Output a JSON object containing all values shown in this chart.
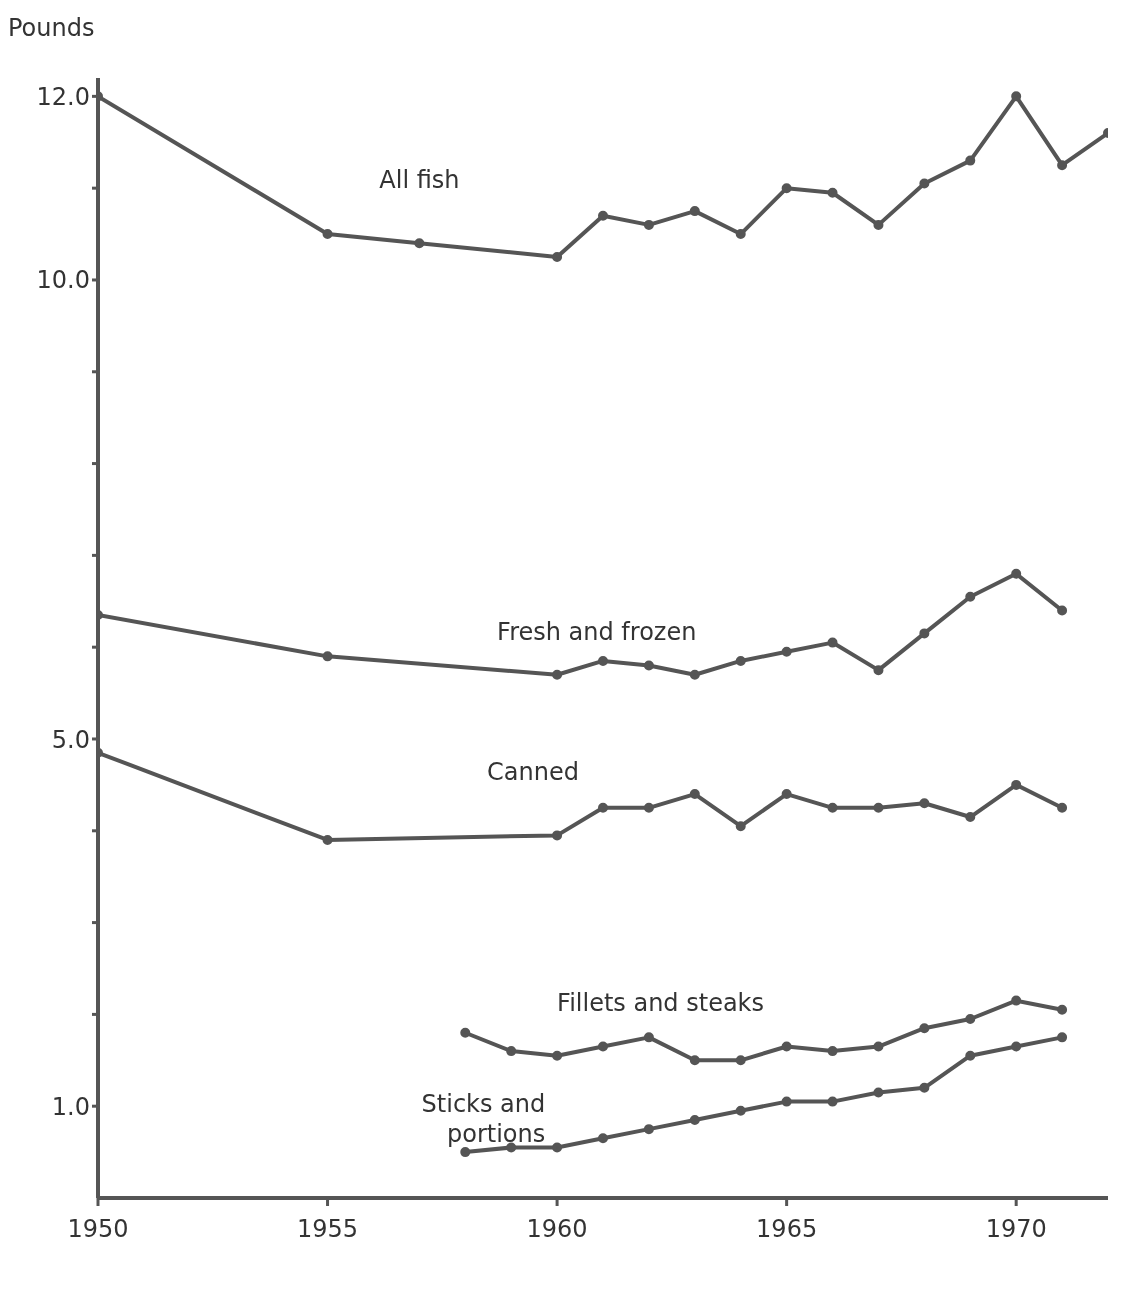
{
  "chart_data": {
    "type": "line",
    "ylabel": "Pounds",
    "xlim": [
      1950,
      1972
    ],
    "xticks": [
      1950,
      1955,
      1960,
      1965,
      1970
    ],
    "ylim": [
      0,
      12.2
    ],
    "yticks": [
      {
        "value": 1,
        "label": "1.0"
      },
      {
        "value": 2,
        "label": null
      },
      {
        "value": 3,
        "label": null
      },
      {
        "value": 4,
        "label": null
      },
      {
        "value": 5,
        "label": "5.0"
      },
      {
        "value": 6,
        "label": null
      },
      {
        "value": 7,
        "label": null
      },
      {
        "value": 8,
        "label": null
      },
      {
        "value": 9,
        "label": null
      },
      {
        "value": 10,
        "label": "10.0"
      },
      {
        "value": 11,
        "label": null
      },
      {
        "value": 12,
        "label": "12.0"
      }
    ],
    "grid": false,
    "legend": false,
    "marker": "circle",
    "line_style": "solid",
    "series": [
      {
        "name": "All fish",
        "color": "#555555",
        "x": [
          1950,
          1955,
          1957,
          1960,
          1961,
          1962,
          1963,
          1964,
          1965,
          1966,
          1967,
          1968,
          1969,
          1970,
          1971,
          1972
        ],
        "values": [
          12.0,
          10.5,
          10.4,
          10.25,
          10.7,
          10.6,
          10.75,
          10.5,
          11.0,
          10.95,
          10.6,
          11.05,
          11.3,
          12.0,
          11.25,
          11.6
        ]
      },
      {
        "name": "Fresh and frozen",
        "color": "#555555",
        "x": [
          1950,
          1955,
          1960,
          1961,
          1962,
          1963,
          1964,
          1965,
          1966,
          1967,
          1968,
          1969,
          1970,
          1971
        ],
        "values": [
          6.35,
          5.9,
          5.7,
          5.85,
          5.8,
          5.7,
          5.85,
          5.95,
          6.05,
          5.75,
          6.15,
          6.55,
          6.8,
          6.4
        ]
      },
      {
        "name": "Canned",
        "color": "#555555",
        "x": [
          1950,
          1955,
          1960,
          1961,
          1962,
          1963,
          1964,
          1965,
          1966,
          1967,
          1968,
          1969,
          1970,
          1971
        ],
        "values": [
          4.85,
          3.9,
          3.95,
          4.25,
          4.25,
          4.4,
          4.05,
          4.4,
          4.25,
          4.25,
          4.3,
          4.15,
          4.5,
          4.25
        ]
      },
      {
        "name": "Fillets and steaks",
        "color": "#555555",
        "x": [
          1958,
          1959,
          1960,
          1961,
          1962,
          1963,
          1964,
          1965,
          1966,
          1967,
          1968,
          1969,
          1970,
          1971
        ],
        "values": [
          1.8,
          1.6,
          1.55,
          1.65,
          1.75,
          1.5,
          1.5,
          1.65,
          1.6,
          1.65,
          1.85,
          1.95,
          2.15,
          2.05
        ]
      },
      {
        "name": "Sticks and portions",
        "color": "#555555",
        "x": [
          1958,
          1959,
          1960,
          1961,
          1962,
          1963,
          1964,
          1965,
          1966,
          1967,
          1968,
          1969,
          1970,
          1971
        ],
        "values": [
          0.5,
          0.55,
          0.55,
          0.65,
          0.75,
          0.85,
          0.95,
          1.05,
          1.05,
          1.15,
          1.2,
          1.55,
          1.65,
          1.75
        ]
      }
    ]
  }
}
